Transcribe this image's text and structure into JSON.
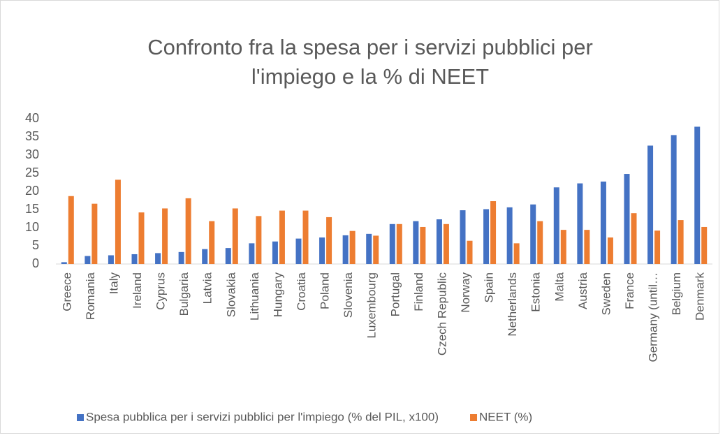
{
  "chart_data": {
    "type": "bar",
    "title": [
      "Confronto fra la spesa per i servizi pubblici per",
      "l'impiego e la % di NEET"
    ],
    "categories": [
      "Greece",
      "Romania",
      "Italy",
      "Ireland",
      "Cyprus",
      "Bulgaria",
      "Latvia",
      "Slovakia",
      "Lithuania",
      "Hungary",
      "Croatia",
      "Poland",
      "Slovenia",
      "Luxembourg",
      "Portugal",
      "Finland",
      "Czech Republic",
      "Norway",
      "Spain",
      "Netherlands",
      "Estonia",
      "Malta",
      "Austria",
      "Sweden",
      "France",
      "Germany (until…",
      "Belgium",
      "Denmark"
    ],
    "series": [
      {
        "name": "Spesa pubblica per i servizi pubblici per l'impiego (% del PIL, x100)",
        "color": "#4472c4",
        "values": [
          0.5,
          2.2,
          2.4,
          2.7,
          3.0,
          3.3,
          4.1,
          4.4,
          5.7,
          6.2,
          7.0,
          7.3,
          7.9,
          8.3,
          11.0,
          11.8,
          12.3,
          14.8,
          15.1,
          15.6,
          16.4,
          21.1,
          22.2,
          22.7,
          24.8,
          32.6,
          35.5,
          37.8
        ]
      },
      {
        "name": "NEET (%)",
        "color": "#ed7d31",
        "values": [
          18.7,
          16.6,
          23.2,
          14.2,
          15.3,
          18.1,
          11.8,
          15.3,
          13.2,
          14.7,
          14.7,
          12.9,
          9.1,
          7.8,
          11.0,
          10.2,
          11.0,
          6.4,
          17.3,
          5.7,
          11.8,
          9.4,
          9.4,
          7.3,
          14.0,
          9.2,
          12.1,
          10.2
        ]
      }
    ],
    "ylim": [
      0,
      40
    ],
    "yticks": [
      0,
      5,
      10,
      15,
      20,
      25,
      30,
      35,
      40
    ],
    "grid": false,
    "legend": "bottom"
  }
}
